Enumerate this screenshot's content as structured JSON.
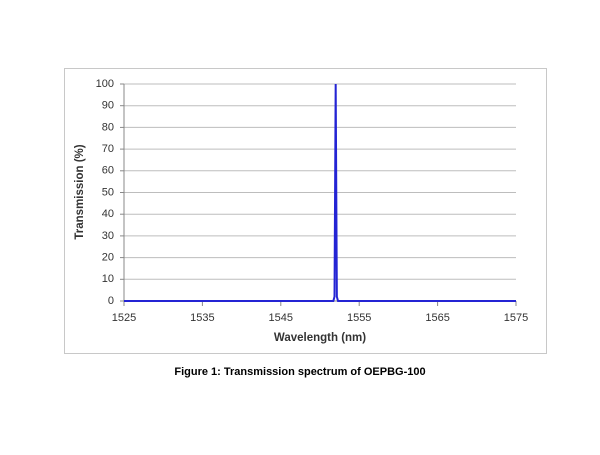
{
  "chart_data": {
    "type": "line",
    "x_label": "Wavelength (nm)",
    "y_label": "Transmission (%)",
    "x": [
      1525,
      1551.7,
      1551.85,
      1552,
      1552.15,
      1552.3,
      1575
    ],
    "values": [
      0,
      0,
      2,
      100,
      2,
      0,
      0
    ],
    "color": "#2424d4",
    "xlim": [
      1525,
      1575
    ],
    "xticks": [
      1525,
      1535,
      1545,
      1555,
      1565,
      1575
    ],
    "ylim": [
      0,
      100
    ],
    "yticks": [
      0,
      10,
      20,
      30,
      40,
      50,
      60,
      70,
      80,
      90,
      100
    ],
    "grid": true
  },
  "caption": "Figure 1: Transmission spectrum of OEPBG-100"
}
